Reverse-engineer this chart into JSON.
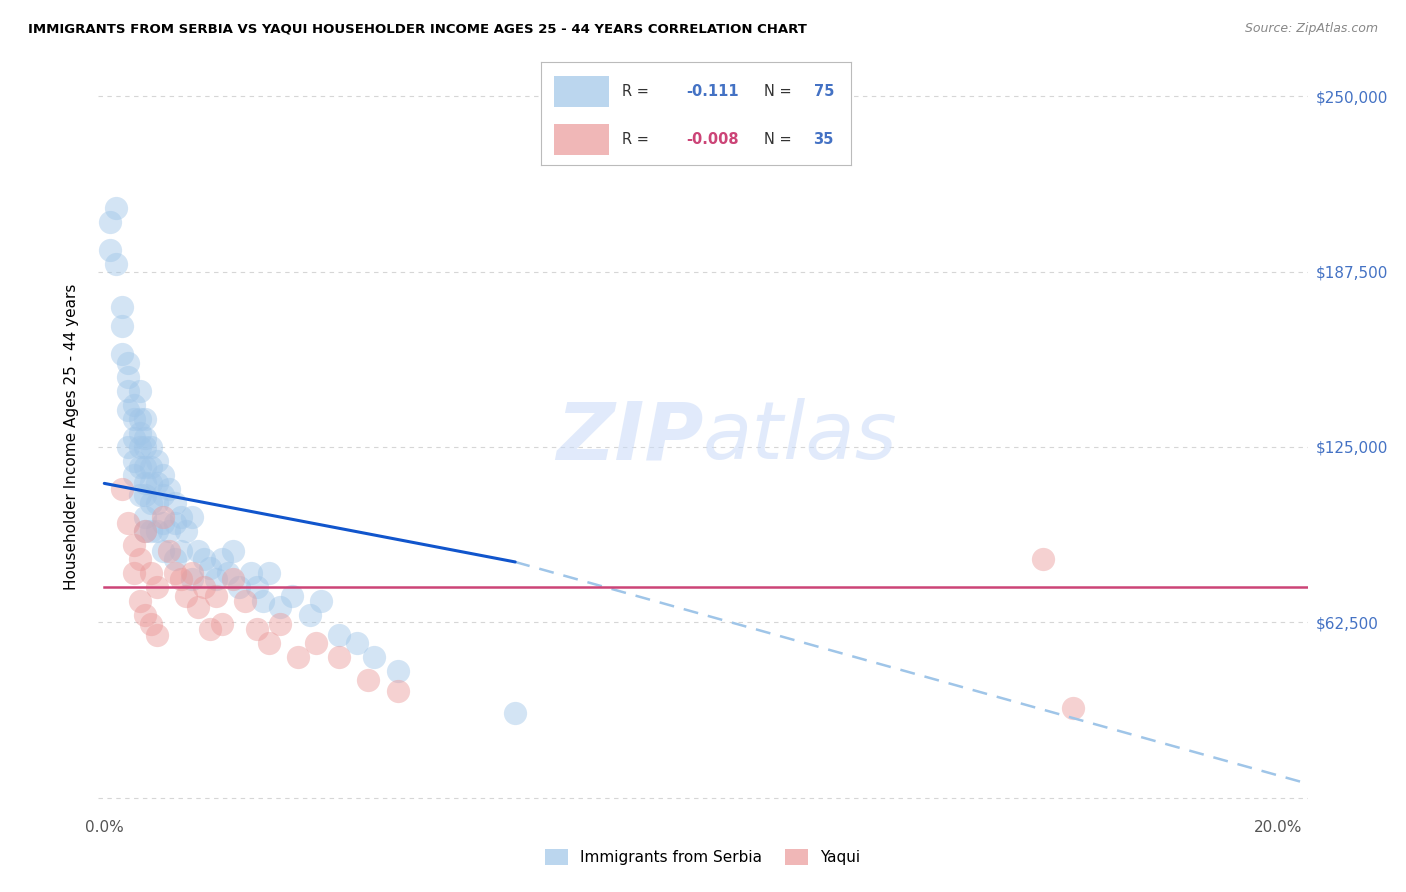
{
  "title": "IMMIGRANTS FROM SERBIA VS YAQUI HOUSEHOLDER INCOME AGES 25 - 44 YEARS CORRELATION CHART",
  "source": "Source: ZipAtlas.com",
  "ylabel_label": "Householder Income Ages 25 - 44 years",
  "y_ticks": [
    0,
    62500,
    125000,
    187500,
    250000
  ],
  "y_tick_labels_right": [
    "",
    "$62,500",
    "$125,000",
    "$187,500",
    "$250,000"
  ],
  "xlim": [
    -0.001,
    0.205
  ],
  "ylim": [
    -5000,
    262000
  ],
  "serbia_color": "#9fc5e8",
  "yaqui_color": "#ea9999",
  "serbia_line_color": "#1155cc",
  "yaqui_line_color": "#cc4477",
  "dashed_line_color": "#9fc5e8",
  "watermark_color": "#c9daf8",
  "background_color": "#ffffff",
  "grid_color": "#cccccc",
  "title_color": "#000000",
  "source_color": "#888888",
  "axis_label_color": "#000000",
  "tick_label_color": "#555555",
  "right_tick_color": "#4472c4",
  "serbia_scatter_x": [
    0.001,
    0.001,
    0.002,
    0.002,
    0.003,
    0.003,
    0.003,
    0.004,
    0.004,
    0.004,
    0.004,
    0.004,
    0.005,
    0.005,
    0.005,
    0.005,
    0.005,
    0.006,
    0.006,
    0.006,
    0.006,
    0.006,
    0.006,
    0.007,
    0.007,
    0.007,
    0.007,
    0.007,
    0.007,
    0.007,
    0.007,
    0.008,
    0.008,
    0.008,
    0.008,
    0.008,
    0.009,
    0.009,
    0.009,
    0.009,
    0.01,
    0.01,
    0.01,
    0.01,
    0.011,
    0.011,
    0.012,
    0.012,
    0.012,
    0.013,
    0.013,
    0.014,
    0.015,
    0.015,
    0.016,
    0.017,
    0.018,
    0.019,
    0.02,
    0.021,
    0.022,
    0.023,
    0.025,
    0.026,
    0.027,
    0.028,
    0.03,
    0.032,
    0.035,
    0.037,
    0.04,
    0.043,
    0.046,
    0.05,
    0.07
  ],
  "serbia_scatter_y": [
    205000,
    195000,
    210000,
    190000,
    175000,
    168000,
    158000,
    155000,
    150000,
    145000,
    138000,
    125000,
    140000,
    135000,
    128000,
    120000,
    115000,
    145000,
    135000,
    130000,
    125000,
    118000,
    108000,
    135000,
    128000,
    125000,
    118000,
    112000,
    108000,
    100000,
    95000,
    125000,
    118000,
    112000,
    105000,
    95000,
    120000,
    112000,
    105000,
    95000,
    115000,
    108000,
    98000,
    88000,
    110000,
    95000,
    105000,
    98000,
    85000,
    100000,
    88000,
    95000,
    100000,
    78000,
    88000,
    85000,
    82000,
    78000,
    85000,
    80000,
    88000,
    75000,
    80000,
    75000,
    70000,
    80000,
    68000,
    72000,
    65000,
    70000,
    58000,
    55000,
    50000,
    45000,
    30000
  ],
  "yaqui_scatter_x": [
    0.003,
    0.004,
    0.005,
    0.005,
    0.006,
    0.006,
    0.007,
    0.007,
    0.008,
    0.008,
    0.009,
    0.009,
    0.01,
    0.011,
    0.012,
    0.013,
    0.014,
    0.015,
    0.016,
    0.017,
    0.018,
    0.019,
    0.02,
    0.022,
    0.024,
    0.026,
    0.028,
    0.03,
    0.033,
    0.036,
    0.04,
    0.045,
    0.05,
    0.16,
    0.165
  ],
  "yaqui_scatter_y": [
    110000,
    98000,
    90000,
    80000,
    85000,
    70000,
    95000,
    65000,
    80000,
    62000,
    75000,
    58000,
    100000,
    88000,
    80000,
    78000,
    72000,
    80000,
    68000,
    75000,
    60000,
    72000,
    62000,
    78000,
    70000,
    60000,
    55000,
    62000,
    50000,
    55000,
    50000,
    42000,
    38000,
    85000,
    32000
  ],
  "serbia_trend_x0": 0.0,
  "serbia_trend_y0": 112000,
  "serbia_trend_x1": 0.07,
  "serbia_trend_y1": 84000,
  "dashed_trend_x0": 0.07,
  "dashed_trend_y0": 84000,
  "dashed_trend_x1": 0.205,
  "dashed_trend_y1": 5000,
  "yaqui_trend_y": 75000,
  "legend_R1": "R =",
  "legend_V1": "-0.111",
  "legend_N1": "N =",
  "legend_NV1": "75",
  "legend_R2": "R =",
  "legend_V2": "-0.008",
  "legend_N2": "N =",
  "legend_NV2": "35",
  "legend_serbia_label": "Immigrants from Serbia",
  "legend_yaqui_label": "Yaqui"
}
